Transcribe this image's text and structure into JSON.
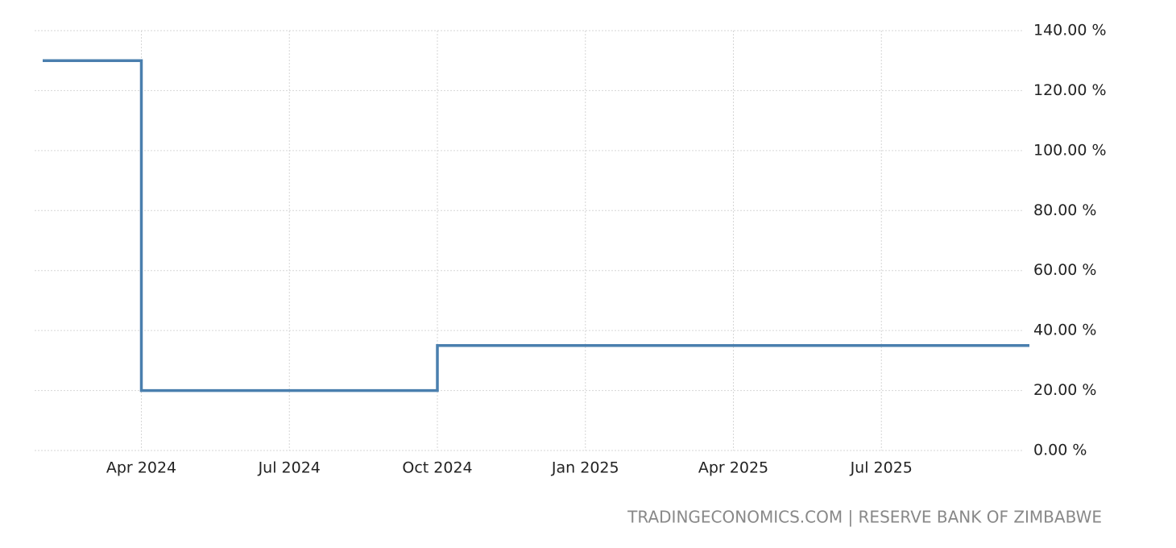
{
  "chart_data": {
    "type": "line",
    "step": true,
    "source": "TRADINGECONOMICS.COM | RESERVE BANK OF ZIMBABWE",
    "x": [
      "2024-02",
      "2024-04",
      "2024-10",
      "2025-10"
    ],
    "series": [
      {
        "color": "#4a7fae",
        "values": [
          130,
          20,
          35,
          35
        ]
      }
    ],
    "xlim": [
      "2024-02",
      "2025-10"
    ],
    "xticks": [
      {
        "value": "2024-04",
        "label": "Apr 2024"
      },
      {
        "value": "2024-07",
        "label": "Jul 2024"
      },
      {
        "value": "2024-10",
        "label": "Oct 2024"
      },
      {
        "value": "2025-01",
        "label": "Jan 2025"
      },
      {
        "value": "2025-04",
        "label": "Apr 2025"
      },
      {
        "value": "2025-07",
        "label": "Jul 2025"
      }
    ],
    "ylim": [
      0,
      140
    ],
    "yticks": [
      {
        "value": 0,
        "label": "0.00 %"
      },
      {
        "value": 20,
        "label": "20.00 %"
      },
      {
        "value": 40,
        "label": "40.00 %"
      },
      {
        "value": 60,
        "label": "60.00 %"
      },
      {
        "value": 80,
        "label": "80.00 %"
      },
      {
        "value": 100,
        "label": "100.00 %"
      },
      {
        "value": 120,
        "label": "120.00 %"
      },
      {
        "value": 140,
        "label": "140.00 %"
      }
    ],
    "grid": true
  }
}
